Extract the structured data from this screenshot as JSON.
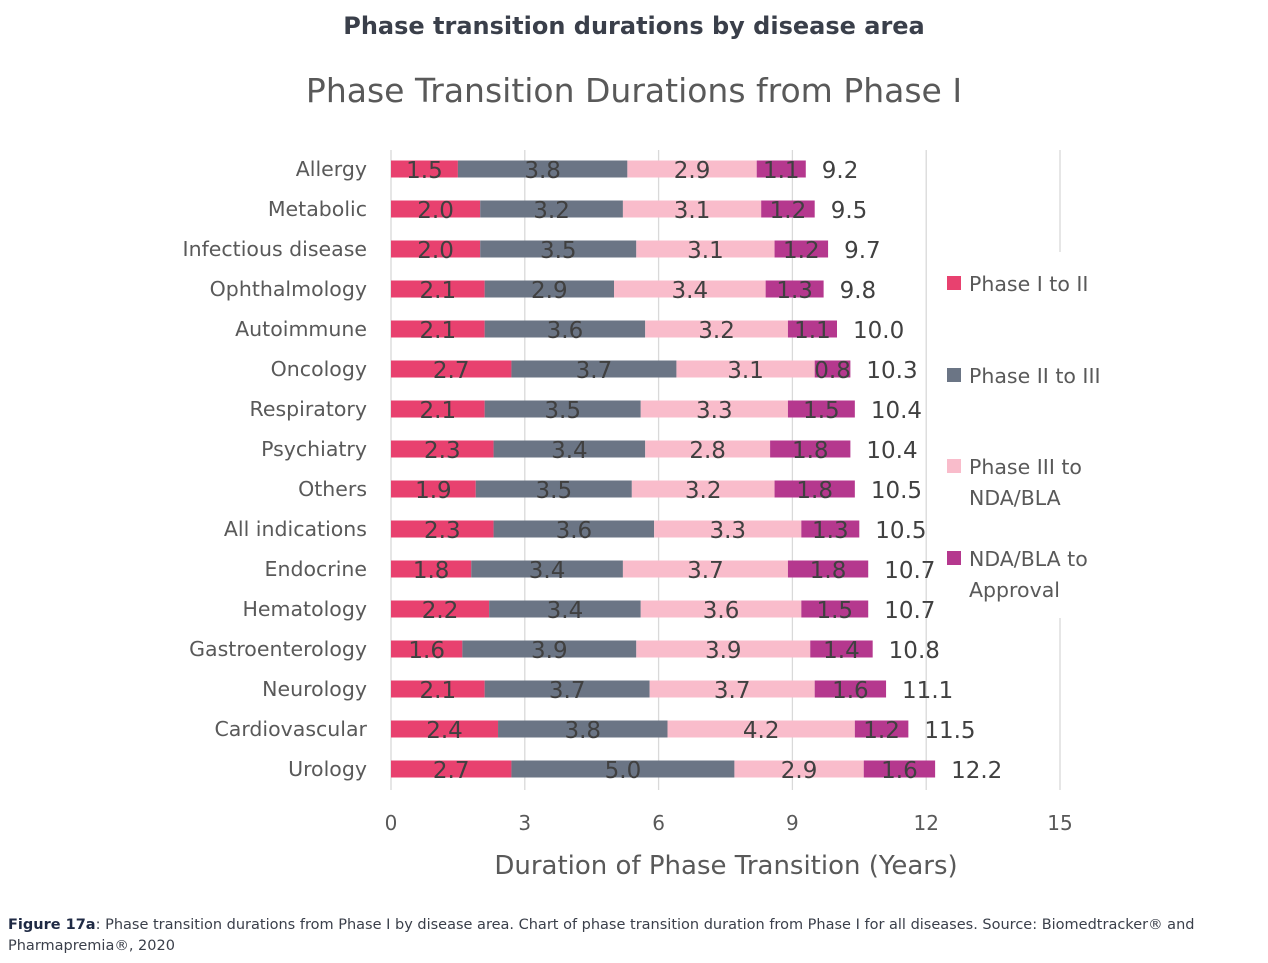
{
  "page": {
    "heading": "Phase transition durations by disease area",
    "caption_label": "Figure 17a",
    "caption_text": ": Phase transition durations from Phase I by disease area. Chart of phase transition duration from Phase I for all diseases. Source: Biomedtracker® and Pharmapremia®, 2020"
  },
  "chart_data": {
    "type": "bar",
    "orientation": "horizontal",
    "stacked": true,
    "title": "Phase Transition Durations from Phase I",
    "xlabel": "Duration of Phase Transition (Years)",
    "ylabel": "",
    "xlim": [
      0,
      15
    ],
    "xticks": [
      0,
      3,
      6,
      9,
      12,
      15
    ],
    "grid": "vertical",
    "legend_position": "right",
    "categories": [
      "Allergy",
      "Metabolic",
      "Infectious disease",
      "Ophthalmology",
      "Autoimmune",
      "Oncology",
      "Respiratory",
      "Psychiatry",
      "Others",
      "All indications",
      "Endocrine",
      "Hematology",
      "Gastroenterology",
      "Neurology",
      "Cardiovascular",
      "Urology"
    ],
    "series": [
      {
        "name": "Phase I to II",
        "color": "#e8416f",
        "values": [
          1.5,
          2.0,
          2.0,
          2.1,
          2.1,
          2.7,
          2.1,
          2.3,
          1.9,
          2.3,
          1.8,
          2.2,
          1.6,
          2.1,
          2.4,
          2.7
        ]
      },
      {
        "name": "Phase II to III",
        "color": "#6b7585",
        "values": [
          3.8,
          3.2,
          3.5,
          2.9,
          3.6,
          3.7,
          3.5,
          3.4,
          3.5,
          3.6,
          3.4,
          3.4,
          3.9,
          3.7,
          3.8,
          5.0
        ]
      },
      {
        "name": "Phase III to NDA/BLA",
        "color": "#f9bccb",
        "values": [
          2.9,
          3.1,
          3.1,
          3.4,
          3.2,
          3.1,
          3.3,
          2.8,
          3.2,
          3.3,
          3.7,
          3.6,
          3.9,
          3.7,
          4.2,
          2.9
        ]
      },
      {
        "name": "NDA/BLA to Approval",
        "color": "#b5388e",
        "values": [
          1.1,
          1.2,
          1.2,
          1.3,
          1.1,
          0.8,
          1.5,
          1.8,
          1.8,
          1.3,
          1.8,
          1.5,
          1.4,
          1.6,
          1.2,
          1.6
        ]
      }
    ],
    "totals": [
      "9.2",
      "9.5",
      "9.7",
      "9.8",
      "10.0",
      "10.3",
      "10.4",
      "10.4",
      "10.5",
      "10.5",
      "10.7",
      "10.7",
      "10.8",
      "11.1",
      "11.5",
      "12.2"
    ],
    "legend_lines": [
      [
        "Phase I to II"
      ],
      [
        "Phase II to III"
      ],
      [
        "Phase III to",
        "NDA/BLA"
      ],
      [
        "NDA/BLA to",
        "Approval"
      ]
    ]
  }
}
